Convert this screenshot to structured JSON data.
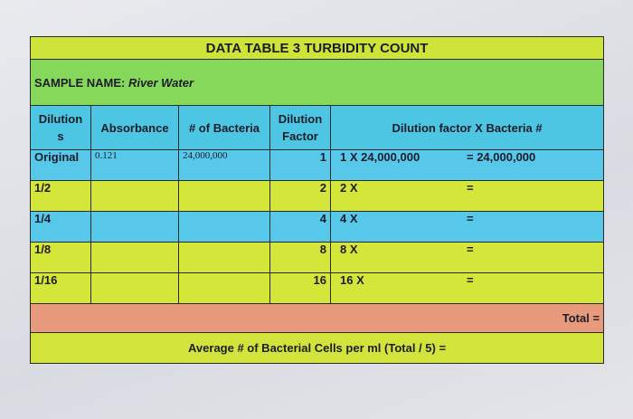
{
  "title": "DATA TABLE 3 TURBIDITY COUNT",
  "sample": {
    "label": "SAMPLE NAME:",
    "value": "River Water"
  },
  "table": {
    "headers": [
      [
        "Dilution",
        "s"
      ],
      [
        "Absorbance"
      ],
      [
        "# of Bacteria"
      ],
      [
        "Dilution",
        "Factor"
      ],
      [
        "Dilution factor X Bacteria #"
      ]
    ],
    "rows": [
      {
        "dilution": "Original",
        "absorbance": "0.121",
        "bacteria": "24,000,000",
        "factor": 1,
        "product": "1  X  24,000,000",
        "result": "=  24,000,000"
      },
      {
        "dilution": "1/2",
        "factor": 2,
        "product": "2  X",
        "result": "="
      },
      {
        "dilution": "1/4",
        "factor": 4,
        "product": "4  X",
        "result": "="
      },
      {
        "dilution": "1/8",
        "factor": 8,
        "product": "8  X",
        "result": "="
      },
      {
        "dilution": "1/16",
        "factor": 16,
        "product": "16 X",
        "result": "="
      }
    ]
  },
  "total": "Total =",
  "average": "Average # of Bacterial Cells per ml (Total / 5) ="
}
